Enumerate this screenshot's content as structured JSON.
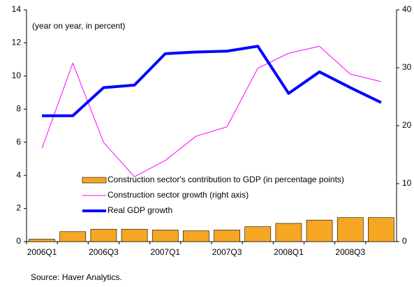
{
  "chart_data": {
    "type": "bar",
    "annotation": "(year on year, in percent)",
    "source": "Source:  Haver Analytics.",
    "categories": [
      "2006Q1",
      null,
      "2006Q3",
      null,
      "2007Q1",
      null,
      "2007Q3",
      null,
      "2008Q1",
      null,
      "2008Q3",
      null
    ],
    "ylim": [
      0,
      14
    ],
    "yticks": [
      0,
      2,
      4,
      6,
      8,
      10,
      12,
      14
    ],
    "y2lim": [
      0,
      40
    ],
    "y2ticks": [
      0,
      10,
      20,
      30,
      40
    ],
    "series": [
      {
        "name": "Construction sector's contribution to GDP (in percentage points)",
        "type": "bar",
        "color": "#f5a623",
        "values": [
          0.15,
          0.6,
          0.75,
          0.75,
          0.7,
          0.65,
          0.7,
          0.9,
          1.1,
          1.3,
          1.45,
          1.45
        ]
      },
      {
        "name": "Construction sector growth (right axis)",
        "type": "line",
        "axis": "y2",
        "color": "#ff00ff",
        "width": 1,
        "values": [
          16.1,
          30.8,
          17.1,
          11.2,
          14.0,
          18.2,
          19.8,
          29.9,
          32.5,
          33.7,
          28.9,
          27.6
        ]
      },
      {
        "name": "Real GDP growth",
        "type": "line",
        "color": "#0000ff",
        "width": 4,
        "values": [
          7.6,
          7.6,
          9.3,
          9.45,
          11.35,
          11.45,
          11.5,
          11.8,
          8.95,
          10.25,
          9.3,
          8.4
        ]
      }
    ]
  }
}
